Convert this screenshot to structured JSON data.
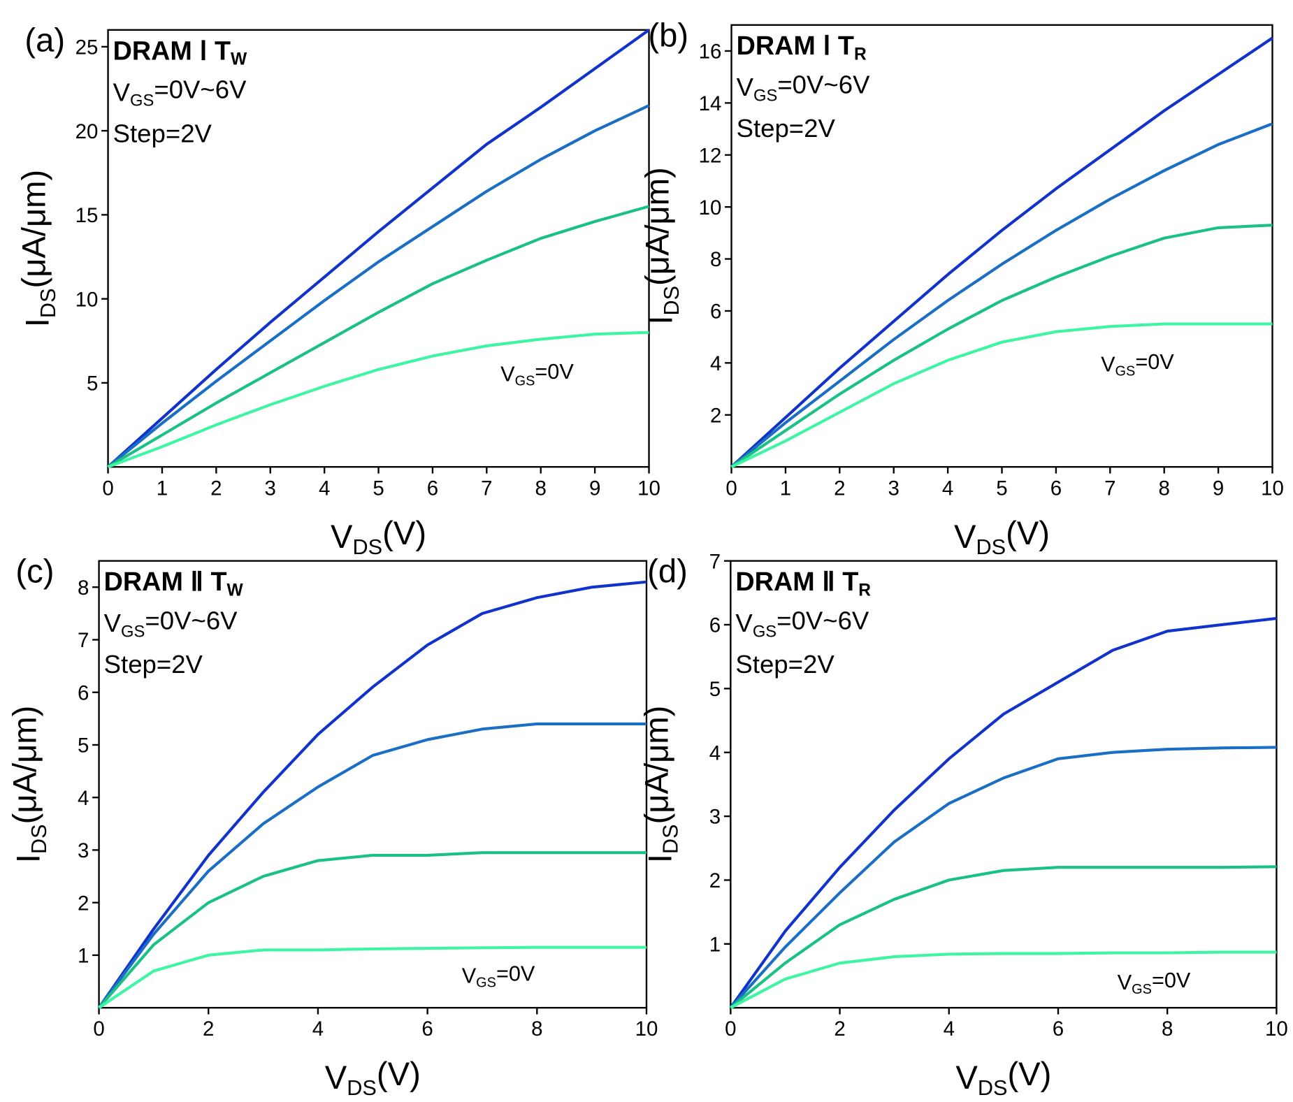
{
  "chart_data": [
    {
      "type": "line",
      "panel_label": "(a)",
      "title": [
        "DRAM Ⅰ T",
        "W"
      ],
      "condition": [
        "V",
        "GS",
        "=0V~6V"
      ],
      "step": "Step=2V",
      "annotation": [
        "V",
        "GS",
        "=0V"
      ],
      "xlabel": [
        "V",
        "DS",
        "(V)"
      ],
      "ylabel": [
        "I",
        "DS",
        "(μA/μm)"
      ],
      "x": [
        0,
        1,
        2,
        3,
        4,
        5,
        6,
        7,
        8,
        9,
        10
      ],
      "xlim": [
        0,
        10
      ],
      "xticks": [
        0,
        1,
        2,
        3,
        4,
        5,
        6,
        7,
        8,
        9,
        10
      ],
      "ylim": [
        0,
        26
      ],
      "yticks": [
        5,
        10,
        15,
        20,
        25
      ],
      "series": [
        {
          "color": "#1133cc",
          "values": [
            0,
            2.9,
            5.8,
            8.6,
            11.3,
            14.0,
            16.6,
            19.2,
            21.4,
            23.7,
            26.0
          ]
        },
        {
          "color": "#1a6ec4",
          "values": [
            0,
            2.6,
            5.1,
            7.5,
            9.9,
            12.2,
            14.3,
            16.4,
            18.3,
            20.0,
            21.5
          ]
        },
        {
          "color": "#19c184",
          "values": [
            0,
            1.9,
            3.8,
            5.6,
            7.4,
            9.2,
            10.9,
            12.3,
            13.6,
            14.6,
            15.5
          ]
        },
        {
          "color": "#3ef5a3",
          "values": [
            0,
            1.2,
            2.5,
            3.7,
            4.8,
            5.8,
            6.6,
            7.2,
            7.6,
            7.9,
            8.0
          ]
        }
      ]
    },
    {
      "type": "line",
      "panel_label": "(b)",
      "title": [
        "DRAM Ⅰ T",
        "R"
      ],
      "condition": [
        "V",
        "GS",
        "=0V~6V"
      ],
      "step": "Step=2V",
      "annotation": [
        "V",
        "GS",
        "=0V"
      ],
      "xlabel": [
        "V",
        "DS",
        "(V)"
      ],
      "ylabel": [
        "I",
        "DS",
        "(μA/μm)"
      ],
      "x": [
        0,
        1,
        2,
        3,
        4,
        5,
        6,
        7,
        8,
        9,
        10
      ],
      "xlim": [
        0,
        10
      ],
      "xticks": [
        0,
        1,
        2,
        3,
        4,
        5,
        6,
        7,
        8,
        9,
        10
      ],
      "ylim": [
        0,
        17
      ],
      "yticks": [
        2,
        4,
        6,
        8,
        10,
        12,
        14,
        16
      ],
      "series": [
        {
          "color": "#1133cc",
          "values": [
            0,
            1.9,
            3.8,
            5.6,
            7.4,
            9.1,
            10.7,
            12.2,
            13.7,
            15.1,
            16.5
          ]
        },
        {
          "color": "#1a6ec4",
          "values": [
            0,
            1.7,
            3.3,
            4.9,
            6.4,
            7.8,
            9.1,
            10.3,
            11.4,
            12.4,
            13.2
          ]
        },
        {
          "color": "#19c184",
          "values": [
            0,
            1.4,
            2.8,
            4.1,
            5.3,
            6.4,
            7.3,
            8.1,
            8.8,
            9.2,
            9.3
          ]
        },
        {
          "color": "#3ef5a3",
          "values": [
            0,
            1.0,
            2.1,
            3.2,
            4.1,
            4.8,
            5.2,
            5.4,
            5.5,
            5.5,
            5.5
          ]
        }
      ]
    },
    {
      "type": "line",
      "panel_label": "(c)",
      "title": [
        "DRAM Ⅱ T",
        "W"
      ],
      "condition": [
        "V",
        "GS",
        "=0V~6V"
      ],
      "step": "Step=2V",
      "annotation": [
        "V",
        "GS",
        "=0V"
      ],
      "xlabel": [
        "V",
        "DS",
        "(V)"
      ],
      "ylabel": [
        "I",
        "DS",
        "(μA/μm)"
      ],
      "x": [
        0,
        1,
        2,
        3,
        4,
        5,
        6,
        7,
        8,
        9,
        10
      ],
      "xlim": [
        0,
        10
      ],
      "xticks": [
        0,
        2,
        4,
        6,
        8,
        10
      ],
      "ylim": [
        0,
        8.5
      ],
      "yticks": [
        1,
        2,
        3,
        4,
        5,
        6,
        7,
        8
      ],
      "series": [
        {
          "color": "#1133cc",
          "values": [
            0,
            1.5,
            2.9,
            4.1,
            5.2,
            6.1,
            6.9,
            7.5,
            7.8,
            8.0,
            8.1
          ]
        },
        {
          "color": "#1a6ec4",
          "values": [
            0,
            1.4,
            2.6,
            3.5,
            4.2,
            4.8,
            5.1,
            5.3,
            5.4,
            5.4,
            5.4
          ]
        },
        {
          "color": "#19c184",
          "values": [
            0,
            1.2,
            2.0,
            2.5,
            2.8,
            2.9,
            2.9,
            2.95,
            2.95,
            2.95,
            2.95
          ]
        },
        {
          "color": "#3ef5a3",
          "values": [
            0,
            0.7,
            1.0,
            1.1,
            1.1,
            1.12,
            1.13,
            1.14,
            1.15,
            1.15,
            1.15
          ]
        }
      ]
    },
    {
      "type": "line",
      "panel_label": "(d)",
      "title": [
        "DRAM Ⅱ T",
        "R"
      ],
      "condition": [
        "V",
        "GS",
        "=0V~6V"
      ],
      "step": "Step=2V",
      "annotation": [
        "V",
        "GS",
        "=0V"
      ],
      "xlabel": [
        "V",
        "DS",
        "(V)"
      ],
      "ylabel": [
        "I",
        "DS",
        "(μA/μm)"
      ],
      "x": [
        0,
        1,
        2,
        3,
        4,
        5,
        6,
        7,
        8,
        9,
        10
      ],
      "xlim": [
        0,
        10
      ],
      "xticks": [
        0,
        2,
        4,
        6,
        8,
        10
      ],
      "ylim": [
        0,
        7
      ],
      "yticks": [
        1,
        2,
        3,
        4,
        5,
        6,
        7
      ],
      "series": [
        {
          "color": "#1133cc",
          "values": [
            0,
            1.2,
            2.2,
            3.1,
            3.9,
            4.6,
            5.1,
            5.6,
            5.9,
            6.0,
            6.1
          ]
        },
        {
          "color": "#1a6ec4",
          "values": [
            0,
            0.95,
            1.8,
            2.6,
            3.2,
            3.6,
            3.9,
            4.0,
            4.05,
            4.07,
            4.08
          ]
        },
        {
          "color": "#19c184",
          "values": [
            0,
            0.7,
            1.3,
            1.7,
            2.0,
            2.15,
            2.2,
            2.2,
            2.2,
            2.2,
            2.21
          ]
        },
        {
          "color": "#3ef5a3",
          "values": [
            0,
            0.45,
            0.7,
            0.8,
            0.84,
            0.85,
            0.85,
            0.86,
            0.86,
            0.87,
            0.87
          ]
        }
      ]
    }
  ]
}
